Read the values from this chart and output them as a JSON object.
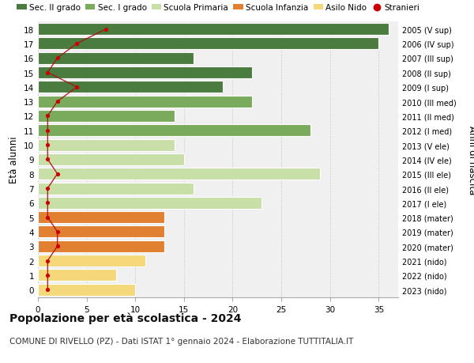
{
  "ages": [
    18,
    17,
    16,
    15,
    14,
    13,
    12,
    11,
    10,
    9,
    8,
    7,
    6,
    5,
    4,
    3,
    2,
    1,
    0
  ],
  "right_labels": [
    "2005 (V sup)",
    "2006 (IV sup)",
    "2007 (III sup)",
    "2008 (II sup)",
    "2009 (I sup)",
    "2010 (III med)",
    "2011 (II med)",
    "2012 (I med)",
    "2013 (V ele)",
    "2014 (IV ele)",
    "2015 (III ele)",
    "2016 (II ele)",
    "2017 (I ele)",
    "2018 (mater)",
    "2019 (mater)",
    "2020 (mater)",
    "2021 (nido)",
    "2022 (nido)",
    "2023 (nido)"
  ],
  "bar_values": [
    36,
    35,
    16,
    22,
    19,
    22,
    14,
    28,
    14,
    15,
    29,
    16,
    23,
    13,
    13,
    13,
    11,
    8,
    10
  ],
  "stranieri_values": [
    7,
    4,
    2,
    1,
    4,
    2,
    1,
    1,
    1,
    1,
    2,
    1,
    1,
    1,
    2,
    2,
    1,
    1,
    1
  ],
  "bar_colors": [
    "#4a7c3f",
    "#4a7c3f",
    "#4a7c3f",
    "#4a7c3f",
    "#4a7c3f",
    "#7aab5c",
    "#7aab5c",
    "#7aab5c",
    "#c8dfa8",
    "#c8dfa8",
    "#c8dfa8",
    "#c8dfa8",
    "#c8dfa8",
    "#e08030",
    "#e08030",
    "#e08030",
    "#f5d87a",
    "#f5d87a",
    "#f5d87a"
  ],
  "legend_labels": [
    "Sec. II grado",
    "Sec. I grado",
    "Scuola Primaria",
    "Scuola Infanzia",
    "Asilo Nido",
    "Stranieri"
  ],
  "legend_colors": [
    "#4a7c3f",
    "#7aab5c",
    "#c8dfa8",
    "#e08030",
    "#f5d87a",
    "#cc0000"
  ],
  "title": "Popolazione per età scolastica - 2024",
  "subtitle": "COMUNE DI RIVELLO (PZ) - Dati ISTAT 1° gennaio 2024 - Elaborazione TUTTITALIA.IT",
  "ylabel": "Età alunni",
  "ylabel_right": "Anni di nascita",
  "xlim": [
    0,
    37
  ],
  "xticks": [
    0,
    5,
    10,
    15,
    20,
    25,
    30,
    35
  ],
  "background_color": "#ffffff",
  "plot_bg_color": "#f0f0f0",
  "bar_height": 0.82,
  "stranieri_dot_color": "#cc0000",
  "stranieri_line_color": "#aa1111",
  "grid_color": "#cccccc"
}
